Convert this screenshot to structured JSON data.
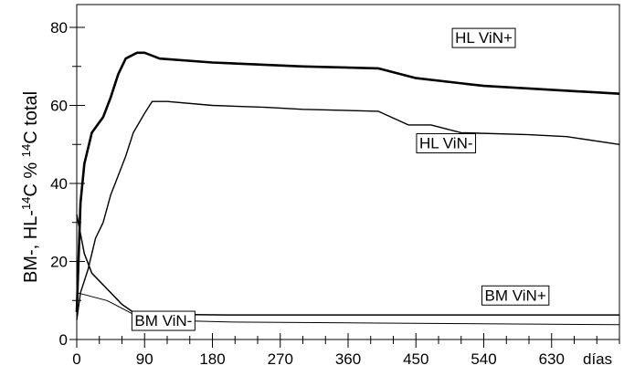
{
  "chart_data": {
    "type": "line",
    "title": "",
    "xlabel": "días",
    "ylabel_parts": [
      "BM-, HL-",
      "14",
      "C % ",
      "14",
      "C total"
    ],
    "xlim": [
      0,
      720
    ],
    "ylim": [
      0,
      80
    ],
    "x_ticks": [
      "0",
      "90",
      "180",
      "270",
      "360",
      "450",
      "540",
      "630"
    ],
    "x_tick_values": [
      0,
      90,
      180,
      270,
      360,
      450,
      540,
      630
    ],
    "x_minor_step": 30,
    "y_ticks": [
      "0",
      "20",
      "40",
      "60",
      "80"
    ],
    "y_tick_values": [
      0,
      20,
      40,
      60,
      80
    ],
    "y_minor_step": 10,
    "grid": false,
    "series": [
      {
        "name": "HL ViN+",
        "stroke_width": 2.6,
        "points": [
          [
            0,
            7
          ],
          [
            5,
            35
          ],
          [
            10,
            45
          ],
          [
            20,
            53
          ],
          [
            35,
            57
          ],
          [
            45,
            62
          ],
          [
            55,
            68
          ],
          [
            65,
            72
          ],
          [
            80,
            73.5
          ],
          [
            90,
            73.5
          ],
          [
            110,
            72
          ],
          [
            180,
            71
          ],
          [
            300,
            70
          ],
          [
            400,
            69.5
          ],
          [
            450,
            67
          ],
          [
            540,
            65
          ],
          [
            630,
            64
          ],
          [
            720,
            63
          ]
        ]
      },
      {
        "name": "HL ViN-",
        "stroke_width": 1.4,
        "points": [
          [
            0,
            5
          ],
          [
            5,
            12
          ],
          [
            15,
            18
          ],
          [
            25,
            26
          ],
          [
            35,
            30
          ],
          [
            45,
            37
          ],
          [
            55,
            42
          ],
          [
            65,
            47
          ],
          [
            75,
            53
          ],
          [
            90,
            58
          ],
          [
            100,
            61
          ],
          [
            120,
            61
          ],
          [
            180,
            60
          ],
          [
            250,
            59.5
          ],
          [
            300,
            59
          ],
          [
            400,
            58.5
          ],
          [
            440,
            55
          ],
          [
            470,
            55
          ],
          [
            510,
            53
          ],
          [
            600,
            52.5
          ],
          [
            650,
            52
          ],
          [
            720,
            50
          ]
        ]
      },
      {
        "name": "BM ViN+",
        "stroke_width": 1.5,
        "points": [
          [
            0,
            32
          ],
          [
            10,
            22
          ],
          [
            20,
            17
          ],
          [
            40,
            13
          ],
          [
            60,
            9
          ],
          [
            75,
            7
          ],
          [
            90,
            6.5
          ],
          [
            200,
            6.3
          ],
          [
            400,
            6.3
          ],
          [
            720,
            6.3
          ]
        ]
      },
      {
        "name": "BM ViN-",
        "stroke_width": 1.0,
        "points": [
          [
            0,
            12
          ],
          [
            10,
            11.5
          ],
          [
            40,
            10
          ],
          [
            60,
            8
          ],
          [
            80,
            6
          ],
          [
            100,
            5
          ],
          [
            200,
            4.5
          ],
          [
            400,
            4.2
          ],
          [
            720,
            3.8
          ]
        ]
      }
    ],
    "label_positions": {
      "HL ViN+": [
        540,
        76
      ],
      "HL ViN-": [
        490,
        49
      ],
      "BM ViN+": [
        582,
        10
      ],
      "BM ViN-": [
        115,
        3.5
      ]
    }
  }
}
